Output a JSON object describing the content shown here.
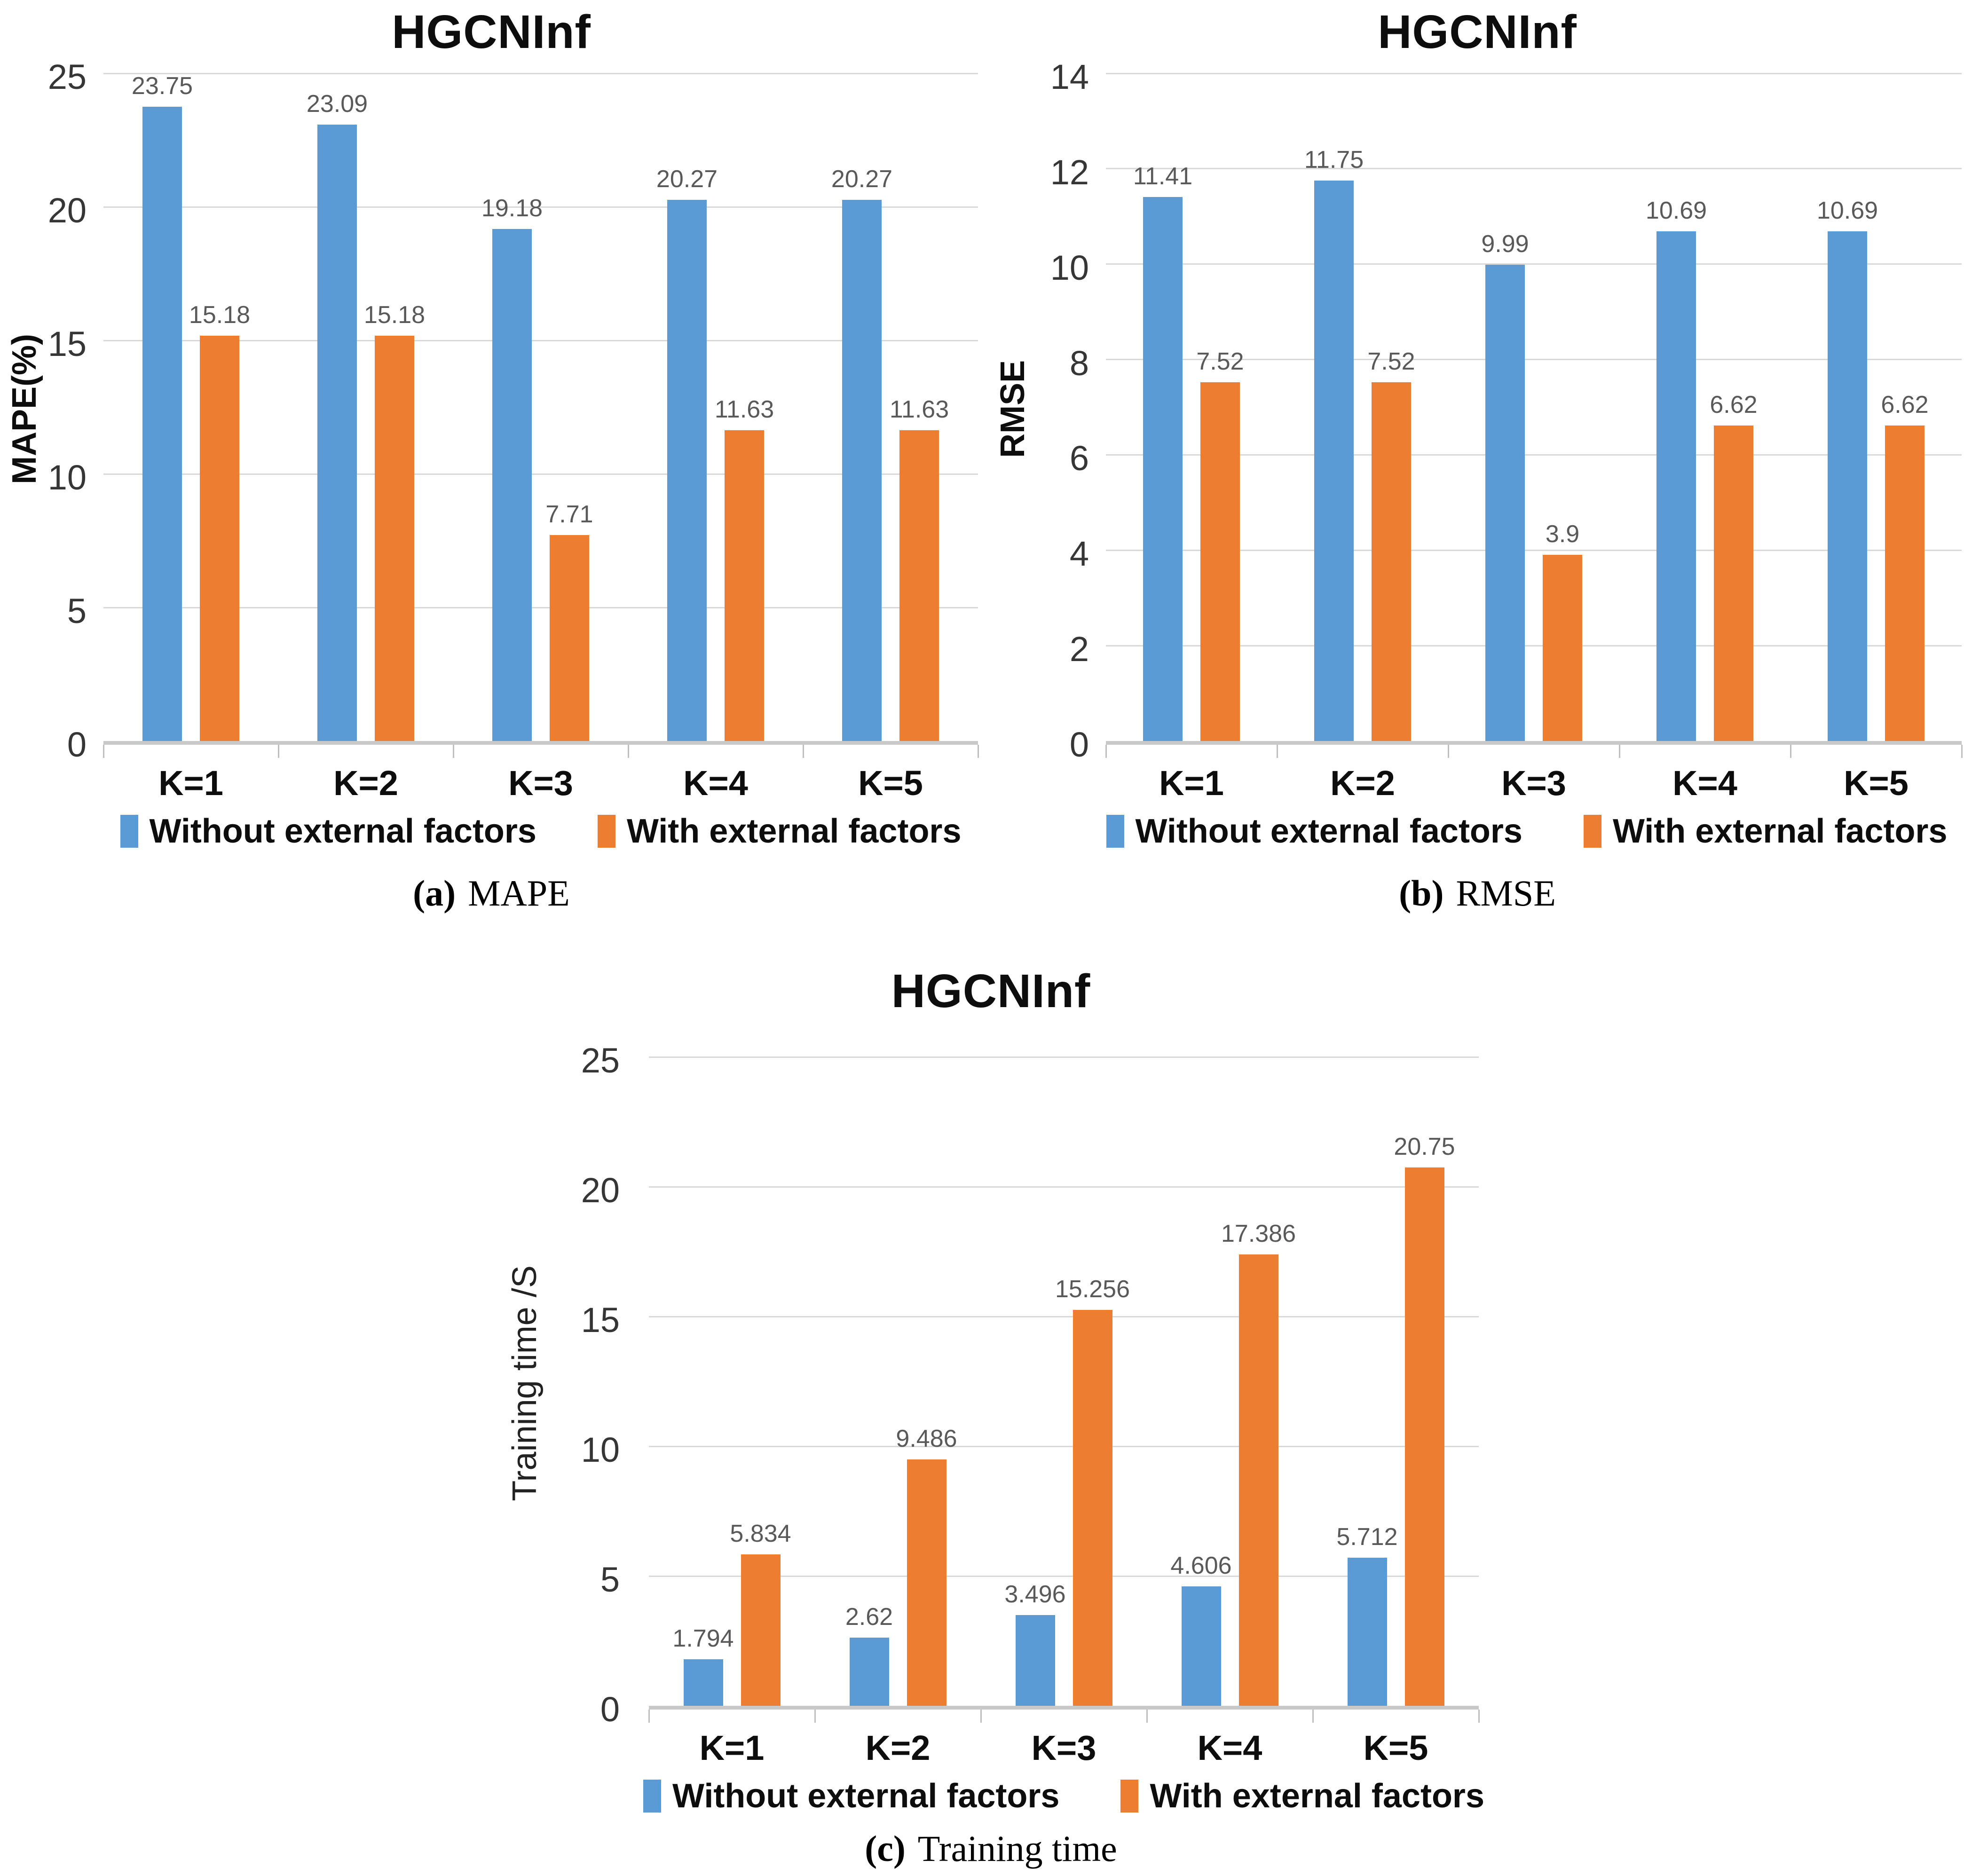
{
  "figure": {
    "background": "#ffffff",
    "captions": [
      {
        "label": "(a)",
        "text": "MAPE"
      },
      {
        "label": "(b)",
        "text": "RMSE"
      },
      {
        "label": "(c)",
        "text": "Training time"
      }
    ]
  },
  "colors": {
    "series_blue": "#5B9BD5",
    "series_orange": "#ED7D31",
    "gridline": "#D9D9D9",
    "axis_line": "#C9C9C9",
    "data_label": "#595959",
    "tick_label": "#363636",
    "text": "#0D0D0D"
  },
  "chart_data": [
    {
      "type": "bar",
      "title": "HGCNInf",
      "xlabel": "",
      "ylabel": "MAPE(%)",
      "categories": [
        "K=1",
        "K=2",
        "K=3",
        "K=4",
        "K=5"
      ],
      "series": [
        {
          "name": "Without external factors",
          "color": "#5B9BD5",
          "values": [
            23.75,
            23.09,
            19.18,
            20.27,
            20.27
          ]
        },
        {
          "name": "With external factors",
          "color": "#ED7D31",
          "values": [
            15.18,
            15.18,
            7.71,
            11.63,
            11.63
          ]
        }
      ],
      "ylim": [
        0,
        25
      ],
      "yticks": [
        0,
        5,
        10,
        15,
        20,
        25
      ],
      "grid": true,
      "legend_position": "bottom"
    },
    {
      "type": "bar",
      "title": "HGCNInf",
      "xlabel": "",
      "ylabel": "RMSE",
      "categories": [
        "K=1",
        "K=2",
        "K=3",
        "K=4",
        "K=5"
      ],
      "series": [
        {
          "name": "Without external factors",
          "color": "#5B9BD5",
          "values": [
            11.41,
            11.75,
            9.99,
            10.69,
            10.69
          ]
        },
        {
          "name": "With external factors",
          "color": "#ED7D31",
          "values": [
            7.52,
            7.52,
            3.9,
            6.62,
            6.62
          ]
        }
      ],
      "ylim": [
        0,
        14
      ],
      "yticks": [
        0,
        2,
        4,
        6,
        8,
        10,
        12,
        14
      ],
      "grid": true,
      "legend_position": "bottom"
    },
    {
      "type": "bar",
      "title": "HGCNInf",
      "xlabel": "",
      "ylabel": "Training time /S",
      "categories": [
        "K=1",
        "K=2",
        "K=3",
        "K=4",
        "K=5"
      ],
      "series": [
        {
          "name": "Without external factors",
          "color": "#5B9BD5",
          "values": [
            1.794,
            2.62,
            3.496,
            4.606,
            5.712
          ]
        },
        {
          "name": "With external factors",
          "color": "#ED7D31",
          "values": [
            5.834,
            9.486,
            15.256,
            17.386,
            20.75
          ]
        }
      ],
      "ylim": [
        0,
        25
      ],
      "yticks": [
        0,
        5,
        10,
        15,
        20,
        25
      ],
      "grid": true,
      "legend_position": "bottom"
    }
  ]
}
